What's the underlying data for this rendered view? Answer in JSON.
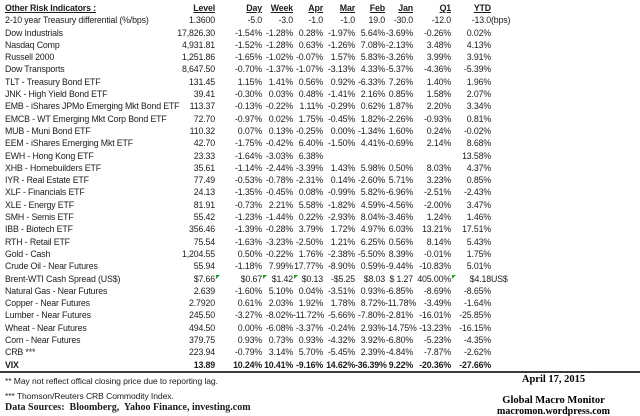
{
  "sheet": {
    "title": "Other Risk Indicators :",
    "header_keys": [
      "level",
      "day",
      "week",
      "apr",
      "mar",
      "feb",
      "jan",
      "q1",
      "ytd"
    ],
    "headers": {
      "level": "Level",
      "day": "Day",
      "week": "Week",
      "apr": "Apr",
      "mar": "Mar",
      "feb": "Feb",
      "jan": "Jan",
      "q1": "Q1",
      "ytd": "YTD"
    },
    "rows": [
      {
        "name": "2-10 year Treasury differential (%/bps)",
        "values": [
          "1.3600",
          "-5.0",
          "-3.0",
          "-1.0",
          "-1.0",
          "19.0",
          "-30.0",
          "-12.0",
          "-13.0"
        ],
        "suffix": "(bps)"
      },
      {
        "name": "Dow Industrials",
        "values": [
          "17,826.30",
          "-1.54%",
          "-1.28%",
          "0.28%",
          "-1.97%",
          "5.64%",
          "-3.69%",
          "-0.26%",
          "0.02%"
        ]
      },
      {
        "name": "Nasdaq Comp",
        "values": [
          "4,931.81",
          "-1.52%",
          "-1.28%",
          "0.63%",
          "-1.26%",
          "7.08%",
          "-2.13%",
          "3.48%",
          "4.13%"
        ]
      },
      {
        "name": "Russell 2000",
        "values": [
          "1,251.86",
          "-1.65%",
          "-1.02%",
          "-0.07%",
          "1.57%",
          "5.83%",
          "-3.26%",
          "3.99%",
          "3.91%"
        ]
      },
      {
        "name": "Dow Transports",
        "values": [
          "8,647.50",
          "-0.70%",
          "-1.37%",
          "-1.07%",
          "-3.13%",
          "4.33%",
          "-5.37%",
          "-4.36%",
          "-5.39%"
        ]
      },
      {
        "name": "TLT - Treasury Bond ETF",
        "values": [
          "131.45",
          "1.15%",
          "1.41%",
          "0.56%",
          "0.92%",
          "-6.33%",
          "7.26%",
          "1.40%",
          "1.96%"
        ]
      },
      {
        "name": "JNK - High Yield Bond ETF",
        "values": [
          "39.41",
          "-0.30%",
          "0.03%",
          "0.48%",
          "-1.41%",
          "2.16%",
          "0.85%",
          "1.58%",
          "2.07%"
        ]
      },
      {
        "name": "EMB - iShares JPMo Emerging Mkt Bond ETF",
        "values": [
          "113.37",
          "-0.13%",
          "-0.22%",
          "1.11%",
          "-0.29%",
          "0.62%",
          "1.87%",
          "2.20%",
          "3.34%"
        ]
      },
      {
        "name": "EMCB - WT Emerging Mkt Corp Bond ETF",
        "values": [
          "72.70",
          "-0.97%",
          "0.02%",
          "1.75%",
          "-0.45%",
          "1.82%",
          "-2.26%",
          "-0.93%",
          "0.81%"
        ]
      },
      {
        "name": "MUB - Muni Bond ETF",
        "values": [
          "110.32",
          "0.07%",
          "0.13%",
          "-0.25%",
          "0.00%",
          "-1.34%",
          "1.60%",
          "0.24%",
          "-0.02%"
        ]
      },
      {
        "name": "EEM - iShares Emerging Mkt ETF",
        "values": [
          "42.70",
          "-1.75%",
          "-0.42%",
          "6.40%",
          "-1.50%",
          "4.41%",
          "-0.69%",
          "2.14%",
          "8.68%"
        ]
      },
      {
        "name": "EWH - Hong Kong ETF",
        "values": [
          "23.33",
          "-1.64%",
          "-3.03%",
          "6.38%",
          "",
          "",
          "",
          "",
          "13.58%"
        ]
      },
      {
        "name": "XHB - Homebuilders ETF",
        "values": [
          "35.61",
          "-1.14%",
          "-2.44%",
          "-3.39%",
          "1.43%",
          "5.98%",
          "0.50%",
          "8.03%",
          "4.37%"
        ]
      },
      {
        "name": "IYR - Real Estate ETF",
        "values": [
          "77.49",
          "-0.53%",
          "-0.78%",
          "-2.31%",
          "0.14%",
          "-2.60%",
          "5.71%",
          "3.23%",
          "0.85%"
        ]
      },
      {
        "name": "XLF - Financials ETF",
        "values": [
          "24.13",
          "-1.35%",
          "-0.45%",
          "0.08%",
          "-0.99%",
          "5.82%",
          "-6.96%",
          "-2.51%",
          "-2.43%"
        ]
      },
      {
        "name": "XLE - Energy ETF",
        "values": [
          "81.91",
          "-0.73%",
          "2.21%",
          "5.58%",
          "-1.82%",
          "4.59%",
          "-4.56%",
          "-2.00%",
          "3.47%"
        ]
      },
      {
        "name": "SMH - Semis ETF",
        "values": [
          "55.42",
          "-1.23%",
          "-1.44%",
          "0.22%",
          "-2.93%",
          "8.04%",
          "-3.46%",
          "1.24%",
          "1.46%"
        ]
      },
      {
        "name": "IBB - Biotech ETF",
        "values": [
          "356.46",
          "-1.39%",
          "-0.28%",
          "3.79%",
          "1.72%",
          "4.97%",
          "6.03%",
          "13.21%",
          "17.51%"
        ]
      },
      {
        "name": "RTH - Retail ETF",
        "values": [
          "75.54",
          "-1.63%",
          "-3.23%",
          "-2.50%",
          "1.21%",
          "6.25%",
          "0.56%",
          "8.14%",
          "5.43%"
        ]
      },
      {
        "name": "Gold - Cash",
        "values": [
          "1,204.55",
          "0.50%",
          "-0.22%",
          "1.76%",
          "-2.38%",
          "-5.50%",
          "8.39%",
          "-0.01%",
          "1.75%"
        ]
      },
      {
        "name": "Crude Oil - Near Futures",
        "values": [
          "55.94",
          "-1.18%",
          "7.99%",
          "17.77%",
          "-8.90%",
          "0.59%",
          "-9.44%",
          "-10.83%",
          "5.01%"
        ]
      },
      {
        "name": "Brent-WTI Cash Spread (US$)",
        "values": [
          "$7.66",
          "$0.67",
          "$1.42",
          "$0.13",
          "-$5.25",
          "$8.03",
          "$ 1.27",
          "405.00%",
          "$4.18"
        ],
        "suffix": "US$",
        "markers": [
          1,
          2,
          3,
          8
        ]
      },
      {
        "name": "Natural Gas - Near Futures",
        "values": [
          "2.639",
          "-1.60%",
          "5.10%",
          "0.04%",
          "-3.51%",
          "0.93%",
          "-6.85%",
          "-8.69%",
          "-8.65%"
        ]
      },
      {
        "name": "Copper - Near Futures",
        "values": [
          "2.7920",
          "0.61%",
          "2.03%",
          "1.92%",
          "1.78%",
          "8.72%",
          "-11.78%",
          "-3.49%",
          "-1.64%"
        ]
      },
      {
        "name": "Lumber - Near Futures",
        "values": [
          "245.50",
          "-3.27%",
          "-8.02%",
          "-11.72%",
          "-5.66%",
          "-7.80%",
          "-2.81%",
          "-16.01%",
          "-25.85%"
        ]
      },
      {
        "name": "Wheat - Near Futures",
        "values": [
          "494.50",
          "0.00%",
          "-6.08%",
          "-3.37%",
          "-0.24%",
          "2.93%",
          "-14.75%",
          "-13.23%",
          "-16.15%"
        ]
      },
      {
        "name": "Corn - Near Futures",
        "values": [
          "379.75",
          "0.93%",
          "0.73%",
          "0.93%",
          "-4.32%",
          "3.92%",
          "-6.80%",
          "-5.23%",
          "-4.35%"
        ]
      },
      {
        "name": "CRB ***",
        "values": [
          "223.94",
          "-0.79%",
          "3.14%",
          "5.70%",
          "-5.45%",
          "2.39%",
          "-4.84%",
          "-7.87%",
          "-2.62%"
        ]
      },
      {
        "name": "VIX",
        "values": [
          "13.89",
          "10.24%",
          "10.41%",
          "-9.16%",
          "14.62%",
          "-36.39%",
          "9.22%",
          "-20.36%",
          "-27.66%"
        ],
        "bold": true
      }
    ]
  },
  "footnotes": {
    "reporting_lag": "** May not reflect offical closing price due to reporting lag.",
    "crb_index": "*** Thomson/Reuters CRB Commodity Index.",
    "data_sources": "Data Sources:  Bloomberg,  Yahoo Finance, investing.com"
  },
  "footer": {
    "date": "April 17, 2015",
    "publication": "Global Macro Monitor",
    "website": "macromon.wordpress.com"
  },
  "colors": {
    "marker_green": "#1FA11F",
    "text": "#1C1C1C",
    "rule": "#3C3C3C"
  }
}
